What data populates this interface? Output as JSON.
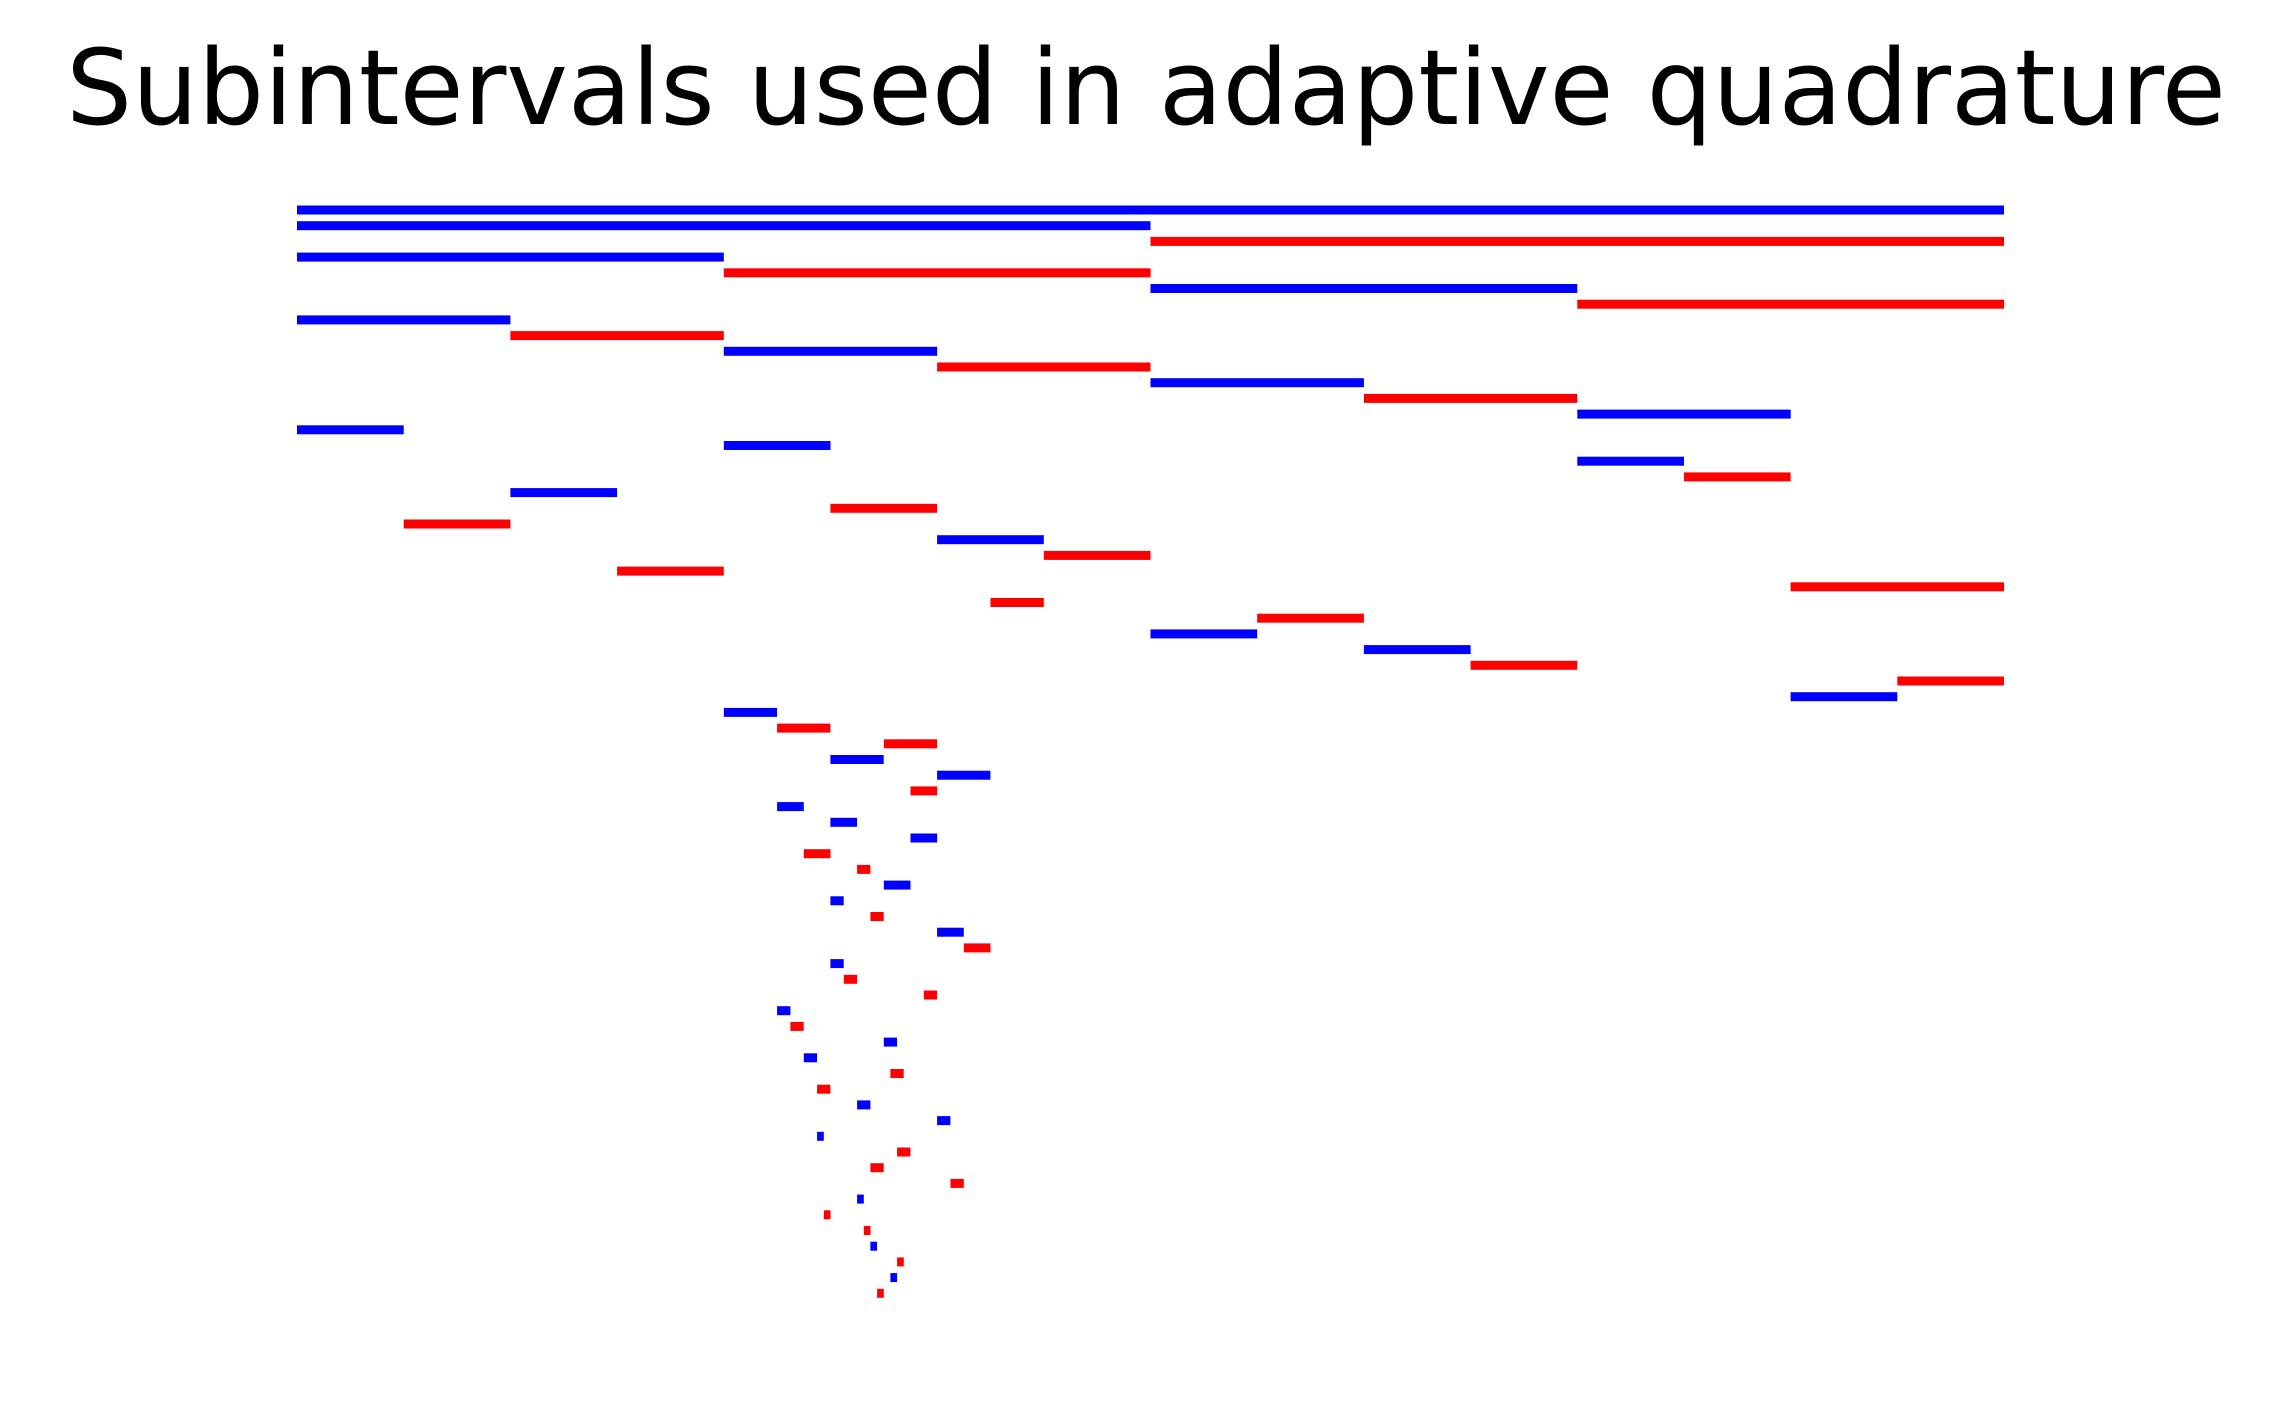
{
  "chart_data": {
    "type": "bar",
    "title": "Subintervals used in adaptive quadrature",
    "xlabel": "",
    "ylabel": "",
    "axes_visible": false,
    "grid": false,
    "xlim": [
      0,
      1
    ],
    "colors": {
      "blue": "#0000ff",
      "red": "#ff0000"
    },
    "intervals": [
      {
        "x0": 0.0,
        "x1": 1.0,
        "row": 0,
        "color": "blue"
      },
      {
        "x0": 0.0,
        "x1": 0.5,
        "row": 1,
        "color": "blue"
      },
      {
        "x0": 0.5,
        "x1": 1.0,
        "row": 2,
        "color": "red"
      },
      {
        "x0": 0.0,
        "x1": 0.25,
        "row": 3,
        "color": "blue"
      },
      {
        "x0": 0.25,
        "x1": 0.5,
        "row": 4,
        "color": "red"
      },
      {
        "x0": 0.5,
        "x1": 0.75,
        "row": 5,
        "color": "blue"
      },
      {
        "x0": 0.75,
        "x1": 1.0,
        "row": 6,
        "color": "red"
      },
      {
        "x0": 0.0,
        "x1": 0.125,
        "row": 7,
        "color": "blue"
      },
      {
        "x0": 0.125,
        "x1": 0.25,
        "row": 8,
        "color": "red"
      },
      {
        "x0": 0.25,
        "x1": 0.375,
        "row": 9,
        "color": "blue"
      },
      {
        "x0": 0.375,
        "x1": 0.5,
        "row": 10,
        "color": "red"
      },
      {
        "x0": 0.5,
        "x1": 0.625,
        "row": 11,
        "color": "blue"
      },
      {
        "x0": 0.625,
        "x1": 0.75,
        "row": 12,
        "color": "red"
      },
      {
        "x0": 0.75,
        "x1": 0.875,
        "row": 13,
        "color": "blue"
      },
      {
        "x0": 0.0,
        "x1": 0.0625,
        "row": 14,
        "color": "blue"
      },
      {
        "x0": 0.25,
        "x1": 0.3125,
        "row": 15,
        "color": "blue"
      },
      {
        "x0": 0.75,
        "x1": 0.8125,
        "row": 16,
        "color": "blue"
      },
      {
        "x0": 0.8125,
        "x1": 0.875,
        "row": 17,
        "color": "red"
      },
      {
        "x0": 0.125,
        "x1": 0.1875,
        "row": 18,
        "color": "blue"
      },
      {
        "x0": 0.3125,
        "x1": 0.375,
        "row": 19,
        "color": "red"
      },
      {
        "x0": 0.0625,
        "x1": 0.125,
        "row": 20,
        "color": "red"
      },
      {
        "x0": 0.375,
        "x1": 0.4375,
        "row": 21,
        "color": "blue"
      },
      {
        "x0": 0.4375,
        "x1": 0.5,
        "row": 22,
        "color": "red"
      },
      {
        "x0": 0.1875,
        "x1": 0.25,
        "row": 23,
        "color": "red"
      },
      {
        "x0": 0.875,
        "x1": 1.0,
        "row": 24,
        "color": "red"
      },
      {
        "x0": 0.40625,
        "x1": 0.4375,
        "row": 25,
        "color": "red"
      },
      {
        "x0": 0.5625,
        "x1": 0.625,
        "row": 26,
        "color": "red"
      },
      {
        "x0": 0.5,
        "x1": 0.5625,
        "row": 27,
        "color": "blue"
      },
      {
        "x0": 0.625,
        "x1": 0.6875,
        "row": 28,
        "color": "blue"
      },
      {
        "x0": 0.6875,
        "x1": 0.75,
        "row": 29,
        "color": "red"
      },
      {
        "x0": 0.9375,
        "x1": 1.0,
        "row": 30,
        "color": "red"
      },
      {
        "x0": 0.875,
        "x1": 0.9375,
        "row": 31,
        "color": "blue"
      },
      {
        "x0": 0.25,
        "x1": 0.28125,
        "row": 32,
        "color": "blue"
      },
      {
        "x0": 0.28125,
        "x1": 0.3125,
        "row": 33,
        "color": "red"
      },
      {
        "x0": 0.34375,
        "x1": 0.375,
        "row": 34,
        "color": "red"
      },
      {
        "x0": 0.3125,
        "x1": 0.34375,
        "row": 35,
        "color": "blue"
      },
      {
        "x0": 0.375,
        "x1": 0.40625,
        "row": 36,
        "color": "blue"
      },
      {
        "x0": 0.359375,
        "x1": 0.375,
        "row": 37,
        "color": "red"
      },
      {
        "x0": 0.28125,
        "x1": 0.296875,
        "row": 38,
        "color": "blue"
      },
      {
        "x0": 0.3125,
        "x1": 0.328125,
        "row": 39,
        "color": "blue"
      },
      {
        "x0": 0.359375,
        "x1": 0.375,
        "row": 40,
        "color": "blue"
      },
      {
        "x0": 0.296875,
        "x1": 0.3125,
        "row": 41,
        "color": "red"
      },
      {
        "x0": 0.328125,
        "x1": 0.3359375,
        "row": 42,
        "color": "red"
      },
      {
        "x0": 0.34375,
        "x1": 0.359375,
        "row": 43,
        "color": "blue"
      },
      {
        "x0": 0.3125,
        "x1": 0.3203125,
        "row": 44,
        "color": "blue"
      },
      {
        "x0": 0.3359375,
        "x1": 0.34375,
        "row": 45,
        "color": "red"
      },
      {
        "x0": 0.375,
        "x1": 0.390625,
        "row": 46,
        "color": "blue"
      },
      {
        "x0": 0.390625,
        "x1": 0.40625,
        "row": 47,
        "color": "red"
      },
      {
        "x0": 0.3125,
        "x1": 0.3203125,
        "row": 48,
        "color": "blue"
      },
      {
        "x0": 0.3203125,
        "x1": 0.328125,
        "row": 49,
        "color": "red"
      },
      {
        "x0": 0.3671875,
        "x1": 0.375,
        "row": 50,
        "color": "red"
      },
      {
        "x0": 0.28125,
        "x1": 0.2890625,
        "row": 51,
        "color": "blue"
      },
      {
        "x0": 0.2890625,
        "x1": 0.296875,
        "row": 52,
        "color": "red"
      },
      {
        "x0": 0.34375,
        "x1": 0.3515625,
        "row": 53,
        "color": "blue"
      },
      {
        "x0": 0.296875,
        "x1": 0.3046875,
        "row": 54,
        "color": "blue"
      },
      {
        "x0": 0.34765625,
        "x1": 0.35546875,
        "row": 55,
        "color": "red"
      },
      {
        "x0": 0.3046875,
        "x1": 0.3125,
        "row": 56,
        "color": "red"
      },
      {
        "x0": 0.328125,
        "x1": 0.3359375,
        "row": 57,
        "color": "blue"
      },
      {
        "x0": 0.375,
        "x1": 0.3828125,
        "row": 58,
        "color": "blue"
      },
      {
        "x0": 0.3046875,
        "x1": 0.30859375,
        "row": 59,
        "color": "blue"
      },
      {
        "x0": 0.3515625,
        "x1": 0.359375,
        "row": 60,
        "color": "red"
      },
      {
        "x0": 0.3359375,
        "x1": 0.34375,
        "row": 61,
        "color": "red"
      },
      {
        "x0": 0.3828125,
        "x1": 0.390625,
        "row": 62,
        "color": "red"
      },
      {
        "x0": 0.328125,
        "x1": 0.33203125,
        "row": 63,
        "color": "blue"
      },
      {
        "x0": 0.30859375,
        "x1": 0.3125,
        "row": 64,
        "color": "red"
      },
      {
        "x0": 0.33203125,
        "x1": 0.3359375,
        "row": 65,
        "color": "red"
      },
      {
        "x0": 0.3359375,
        "x1": 0.33984375,
        "row": 66,
        "color": "blue"
      },
      {
        "x0": 0.3515625,
        "x1": 0.35546875,
        "row": 67,
        "color": "red"
      },
      {
        "x0": 0.34765625,
        "x1": 0.3515625,
        "row": 68,
        "color": "blue"
      },
      {
        "x0": 0.33984375,
        "x1": 0.34375,
        "row": 69,
        "color": "red"
      }
    ]
  }
}
